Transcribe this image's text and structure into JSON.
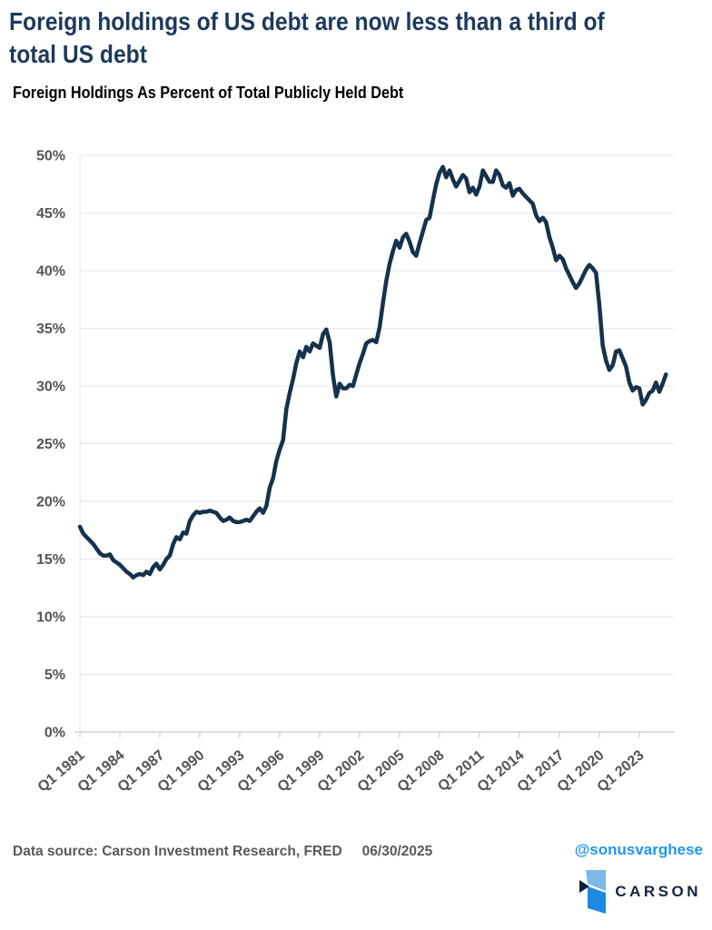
{
  "page": {
    "title": "Foreign holdings of US debt are now less than a third of total US debt",
    "title_lines": [
      "Foreign holdings of US debt are now less than a third of",
      "total US debt"
    ],
    "subtitle": "Foreign Holdings As Percent of Total Publicly Held Debt",
    "footer": {
      "data_source": "Data source: Carson Investment Research, FRED",
      "date": "06/30/2025",
      "handle": "@sonusvarghese"
    },
    "brand": {
      "name": "CARSON"
    }
  },
  "colors": {
    "title_navy": "#1d3a5c",
    "subtitle_black": "#000000",
    "line_navy": "#16324c",
    "axis_label_gray": "#545454",
    "gridline_gray": "#e8e8e8",
    "axis_line_gray": "#d2d2d2",
    "spine_gray": "#e3e3e3",
    "source_gray": "#595959",
    "link_blue": "#1e96f0",
    "logo_navy": "#132540",
    "logo_light_blue": "#7db9e8",
    "logo_mid_blue": "#1e88e5",
    "logo_dark": "#0d2138"
  },
  "chart_data": {
    "type": "line",
    "title": "Foreign Holdings As Percent of Total Publicly Held Debt",
    "xlabel": "",
    "ylabel": "Percent of total publicly held debt",
    "frequency": "quarterly",
    "x_start_label": "Q1 1981",
    "x_end_label": "Q1 2025",
    "x_tick_labels": [
      "Q1 1981",
      "Q1 1984",
      "Q1 1987",
      "Q1 1990",
      "Q1 1993",
      "Q1 1996",
      "Q1 1999",
      "Q1 2002",
      "Q1 2005",
      "Q1 2008",
      "Q1 2011",
      "Q1 2014",
      "Q1 2017",
      "Q1 2020",
      "Q1 2023"
    ],
    "x_tick_interval_quarters": 12,
    "ylim": [
      0,
      50.4
    ],
    "y_ticks": [
      0,
      5,
      10,
      15,
      20,
      25,
      30,
      35,
      40,
      45,
      50
    ],
    "y_tick_labels": [
      "0%",
      "5%",
      "10%",
      "15%",
      "20%",
      "25%",
      "30%",
      "35%",
      "40%",
      "45%",
      "50%"
    ],
    "grid": "horizontal",
    "legend": "none",
    "series": [
      {
        "name": "Foreign holdings as percent of total publicly held debt",
        "color": "#16324c",
        "values": [
          17.8,
          17.2,
          16.9,
          16.6,
          16.3,
          15.9,
          15.5,
          15.3,
          15.3,
          15.4,
          14.9,
          14.7,
          14.5,
          14.2,
          13.9,
          13.7,
          13.4,
          13.6,
          13.7,
          13.6,
          13.9,
          13.7,
          14.3,
          14.6,
          14.1,
          14.5,
          15.0,
          15.3,
          16.3,
          16.9,
          16.7,
          17.3,
          17.2,
          18.3,
          18.8,
          19.1,
          19.0,
          19.1,
          19.1,
          19.2,
          19.1,
          19.0,
          18.6,
          18.3,
          18.4,
          18.6,
          18.3,
          18.2,
          18.2,
          18.3,
          18.4,
          18.3,
          18.7,
          19.1,
          19.4,
          19.0,
          19.6,
          21.2,
          22.0,
          23.5,
          24.5,
          25.3,
          28.0,
          29.4,
          30.6,
          32.0,
          33.0,
          32.5,
          33.4,
          33.0,
          33.7,
          33.5,
          33.3,
          34.5,
          34.9,
          33.8,
          30.9,
          29.1,
          30.2,
          29.8,
          29.8,
          30.1,
          30.0,
          31.0,
          32.0,
          32.8,
          33.7,
          33.9,
          34.0,
          33.8,
          35.1,
          37.2,
          39.1,
          40.6,
          41.7,
          42.6,
          42.0,
          42.9,
          43.2,
          42.5,
          41.6,
          41.3,
          42.4,
          43.4,
          44.4,
          44.6,
          46.1,
          47.5,
          48.5,
          49.0,
          48.1,
          48.7,
          47.9,
          47.3,
          47.8,
          48.3,
          48.0,
          46.8,
          47.2,
          46.6,
          47.3,
          48.7,
          48.2,
          47.7,
          47.7,
          48.7,
          48.3,
          47.4,
          47.2,
          47.6,
          46.5,
          47.0,
          47.1,
          46.7,
          46.4,
          46.1,
          45.8,
          44.8,
          44.3,
          44.6,
          44.2,
          42.9,
          42.0,
          40.9,
          41.3,
          41.0,
          40.2,
          39.6,
          39.0,
          38.5,
          38.9,
          39.5,
          40.1,
          40.5,
          40.2,
          39.8,
          37.0,
          33.5,
          32.2,
          31.4,
          31.8,
          33.0,
          33.1,
          32.4,
          31.7,
          30.3,
          29.6,
          29.9,
          29.8,
          28.4,
          28.8,
          29.4,
          29.6,
          30.3,
          29.5,
          30.2,
          31.0
        ]
      }
    ]
  }
}
